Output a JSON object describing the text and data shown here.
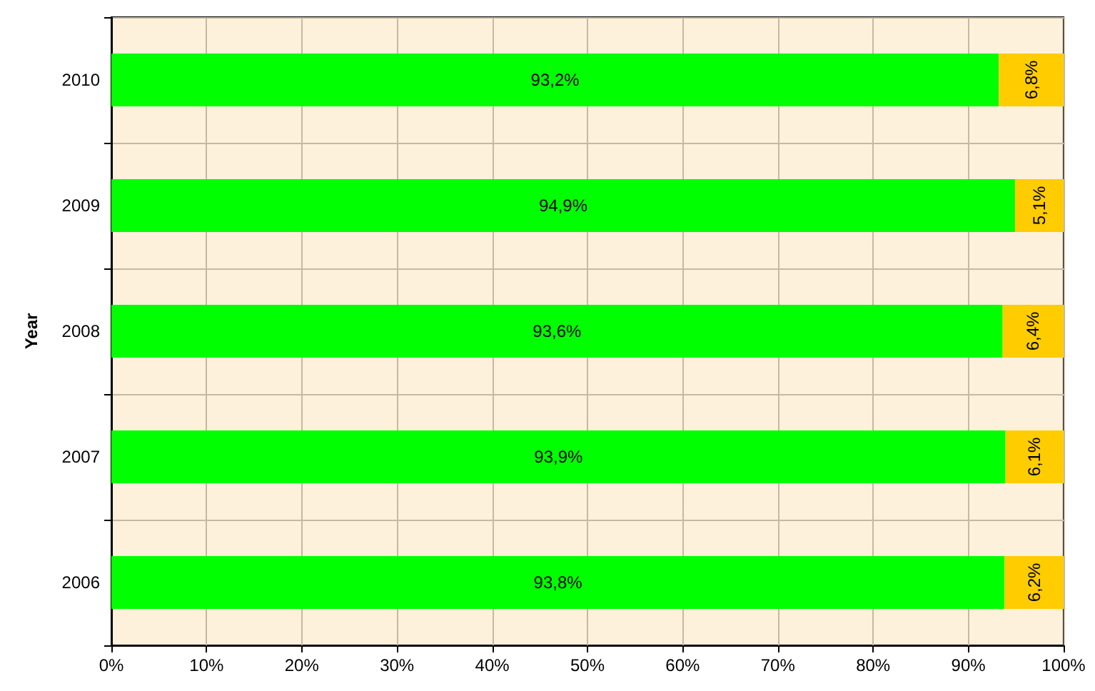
{
  "chart_data": {
    "type": "bar",
    "orientation": "horizontal",
    "stacked": true,
    "ylabel": "Year",
    "categories": [
      "2010",
      "2009",
      "2008",
      "2007",
      "2006"
    ],
    "series": [
      {
        "color": "#00ff00",
        "values": [
          93.2,
          94.9,
          93.6,
          93.9,
          93.8
        ],
        "value_labels": [
          "93,2%",
          "94,9%",
          "93,6%",
          "93,9%",
          "93,8%"
        ]
      },
      {
        "color": "#ffcc00",
        "values": [
          6.8,
          5.1,
          6.4,
          6.1,
          6.2
        ],
        "value_labels": [
          "6,8%",
          "5,1%",
          "6,4%",
          "6,1%",
          "6,2%"
        ]
      }
    ],
    "xlim": [
      0,
      100
    ],
    "xticks": [
      {
        "value": 0,
        "label": "0%"
      },
      {
        "value": 10,
        "label": "10%"
      },
      {
        "value": 20,
        "label": "20%"
      },
      {
        "value": 30,
        "label": "30%"
      },
      {
        "value": 40,
        "label": "40%"
      },
      {
        "value": 50,
        "label": "50%"
      },
      {
        "value": 60,
        "label": "60%"
      },
      {
        "value": 70,
        "label": "70%"
      },
      {
        "value": 80,
        "label": "80%"
      },
      {
        "value": 90,
        "label": "90%"
      },
      {
        "value": 100,
        "label": "100%"
      }
    ],
    "grid": true
  }
}
